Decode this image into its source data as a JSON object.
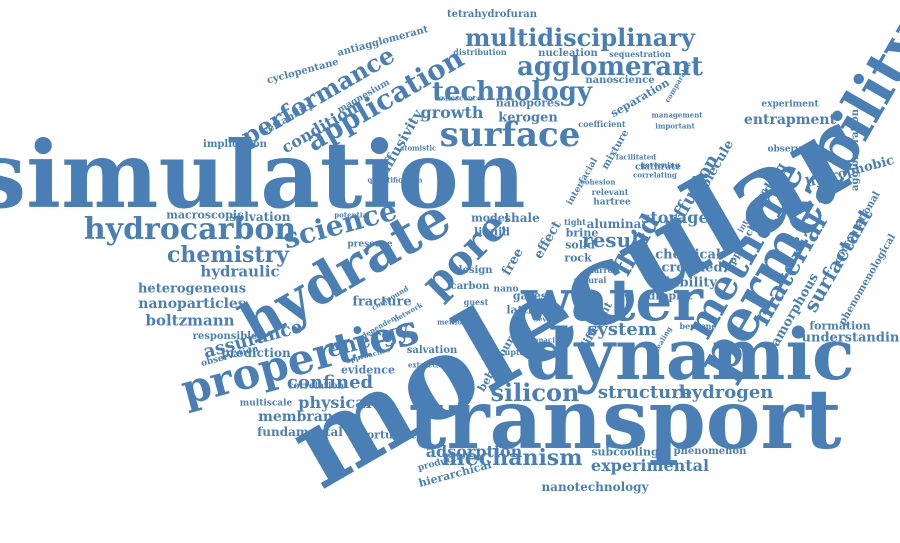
{
  "colors": {
    "word": "#4a7fb5",
    "background": "#ffffff"
  },
  "words": {
    "molecular": "molecular",
    "simulation": "simulation",
    "transport": "transport",
    "dynamic": "dynamic",
    "permeability": "permeability",
    "water": "water",
    "hydrate": "hydrate",
    "properties": "properties",
    "surface": "surface",
    "methane": "methane",
    "pore": "pore",
    "technology": "technology",
    "application": "application",
    "agglomerant": "agglomerant",
    "multidisciplinary": "multidisciplinary",
    "hydrocarbon": "hydrocarbon",
    "science": "science",
    "performance": "performance",
    "chemistry": "chemistry",
    "material": "material",
    "surfactant": "surfactant",
    "silicon": "silicon",
    "structure": "structure",
    "hydrogen": "hydrogen",
    "energy": "energy",
    "fluid": "fluid",
    "result": "result",
    "system": "system",
    "mechanism": "mechanism",
    "adsorption": "adsorption",
    "experimental": "experimental",
    "confined": "confined",
    "physical": "physical",
    "membrane": "membrane",
    "fundamental": "fundamental",
    "assurance": "assurance",
    "prediction": "prediction",
    "boltzmann": "boltzmann",
    "nanoparticles": "nanoparticles",
    "heterogeneous": "heterogeneous",
    "hydraulic": "hydraulic",
    "growth": "growth",
    "kerogen": "kerogen",
    "nanopores": "nanopores",
    "diffusion": "diffusion",
    "storage": "storage",
    "solubility": "solubility",
    "crowded": "crowded",
    "chemical": "chemical",
    "condition": "condition",
    "diffusivity": "diffusivity",
    "entrapment": "entrapment",
    "hydrophobic": "hydrophobic",
    "formation": "formation",
    "understanding": "understanding",
    "nanotechnology": "nanotechnology",
    "subcooling": "subcooling",
    "phenomenon": "phenomenon",
    "hierarchical": "hierarchical",
    "production": "production",
    "tortuosity": "tortuosity",
    "multiscale": "multiscale",
    "correlation": "correlation",
    "evidence": "evidence",
    "observation": "observation",
    "responsible": "responsible",
    "fracture": "fracture",
    "solvation": "solvation",
    "macroscopic": "macroscopic",
    "implication": "implication",
    "wettability": "wettability",
    "magnesium": "magnesium",
    "cyclopentane": "cyclopentane",
    "antiagglomerant": "antiagglomerant",
    "tetrahydrofuran": "tetrahydrofuran",
    "nucleation": "nucleation",
    "sequestration": "sequestration",
    "separation": "separation",
    "nanoscience": "nanoscience",
    "distribution": "distribution",
    "experiment": "experiment",
    "bonding": "bonding",
    "amorphous": "amorphous",
    "computational": "computational",
    "phenomenological": "phenomenological",
    "agglomeration": "agglomeration",
    "observed": "observed",
    "approach": "approach",
    "molecule": "molecule",
    "alumina": "alumina",
    "liquid": "liquid",
    "model": "model",
    "shale": "shale",
    "brine": "brine",
    "solid": "solid",
    "rock": "rock",
    "effect": "effect",
    "free": "free",
    "droplet": "droplet",
    "gases": "gases",
    "lattice": "lattice",
    "salvation": "salvation",
    "carbon": "carbon",
    "design": "design",
    "benzene": "benzene",
    "presence": "presence",
    "behaviour": "behaviour",
    "different": "different",
    "atomistic": "atomistic",
    "coefficient": "coefficient",
    "mixture": "mixture",
    "coalescence": "coalescence",
    "potential": "potential",
    "nano": "nano",
    "hartree": "hartree",
    "relevant": "relevant",
    "cohesion": "cohesion",
    "interfacial": "interfacial",
    "clathrate": "clathrate",
    "management": "management",
    "important": "important",
    "facilitated": "facilitated",
    "governing": "governing",
    "correlating": "correlating",
    "annealing": "annealing",
    "uptake": "uptake",
    "capacity": "capacity",
    "natural": "natural",
    "narrow": "narrow",
    "tight": "tight",
    "guest": "guest",
    "method": "method",
    "several": "several",
    "compound": "compound",
    "network": "network",
    "dependent": "dependent",
    "approaches": "approaches",
    "extraction": "extraction",
    "interaction": "interaction",
    "quantification": "quantification",
    "comparable": "comparable"
  }
}
